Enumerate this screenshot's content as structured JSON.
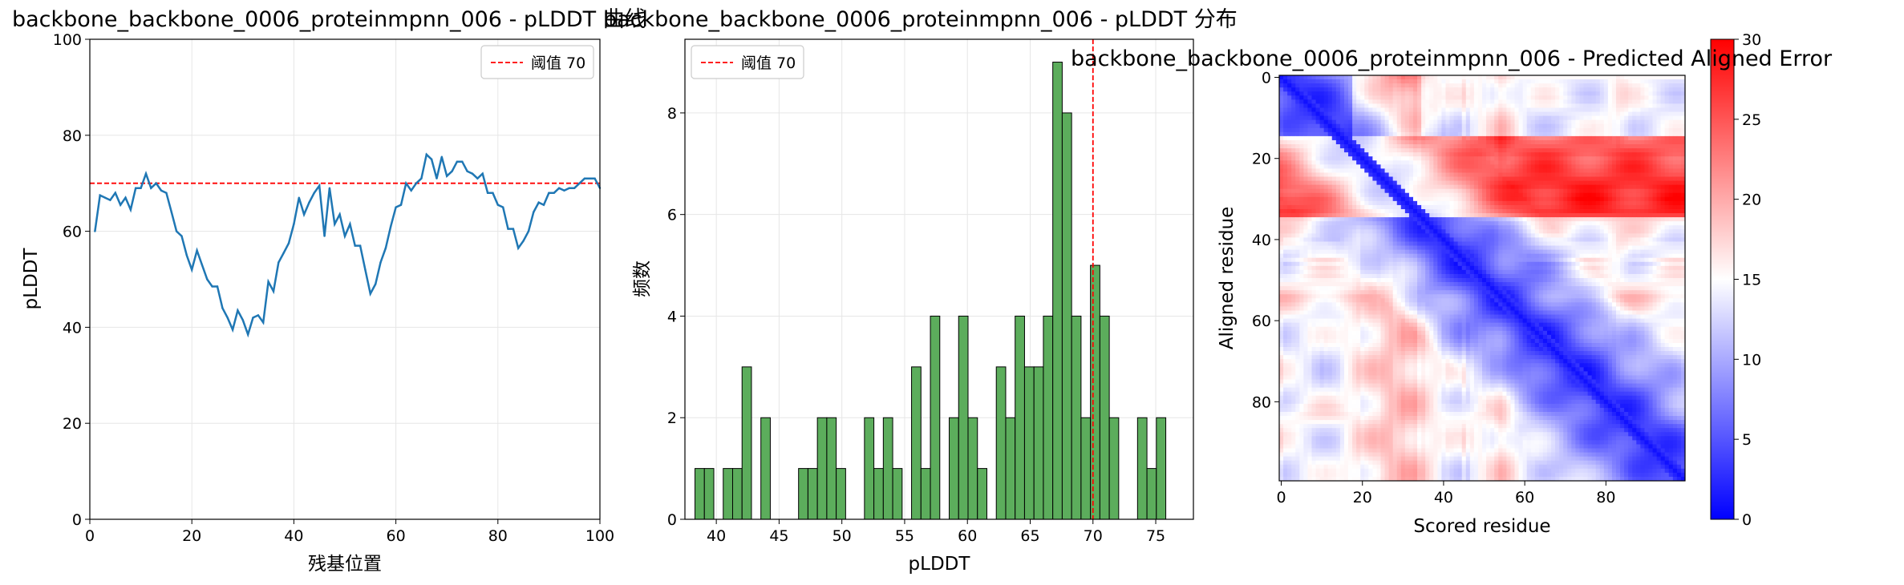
{
  "chart_data": [
    {
      "type": "line",
      "title": "backbone_backbone_0006_proteinmpnn_006 - pLDDT 曲线",
      "xlabel": "残基位置",
      "ylabel": "pLDDT",
      "xlim": [
        0,
        100
      ],
      "ylim": [
        0,
        100
      ],
      "xticks": [
        "0",
        "20",
        "40",
        "60",
        "80",
        "100"
      ],
      "yticks": [
        "0",
        "20",
        "40",
        "60",
        "80",
        "100"
      ],
      "grid": true,
      "legend_position": "top-right",
      "series_color": "#1f77b4",
      "threshold": {
        "value": 70,
        "label": "阈值 70",
        "color": "#ff0000"
      },
      "x": [
        1,
        2,
        3,
        4,
        5,
        6,
        7,
        8,
        9,
        10,
        11,
        12,
        13,
        14,
        15,
        16,
        17,
        18,
        19,
        20,
        21,
        22,
        23,
        24,
        25,
        26,
        27,
        28,
        29,
        30,
        31,
        32,
        33,
        34,
        35,
        36,
        37,
        38,
        39,
        40,
        41,
        42,
        43,
        44,
        45,
        46,
        47,
        48,
        49,
        50,
        51,
        52,
        53,
        54,
        55,
        56,
        57,
        58,
        59,
        60,
        61,
        62,
        63,
        64,
        65,
        66,
        67,
        68,
        69,
        70,
        71,
        72,
        73,
        74,
        75,
        76,
        77,
        78,
        79,
        80,
        81,
        82,
        83,
        84,
        85,
        86,
        87,
        88,
        89,
        90,
        91,
        92,
        93,
        94,
        95,
        96,
        97,
        98,
        99,
        100
      ],
      "values": [
        60,
        67.5,
        67,
        66.5,
        68,
        65.5,
        67,
        64.5,
        69,
        69,
        72,
        69,
        70,
        68.5,
        68,
        64,
        60,
        59,
        55,
        52,
        56,
        53,
        50,
        48.5,
        48.5,
        44,
        42,
        39.5,
        43.5,
        41.5,
        38.5,
        42,
        42.5,
        41,
        49.5,
        47.5,
        53.5,
        55.5,
        57.5,
        61.5,
        67,
        63.5,
        66,
        68,
        69.5,
        59,
        69,
        61.5,
        63.5,
        59,
        61.5,
        57,
        57,
        52,
        47,
        49,
        53.5,
        56.5,
        61,
        65,
        65.5,
        70,
        68.5,
        70,
        71,
        76,
        75,
        71,
        75.5,
        71.5,
        72.5,
        74.5,
        74.5,
        72.5,
        72,
        71,
        72,
        68,
        68,
        65.5,
        65,
        60.5,
        60.5,
        56.5,
        58,
        60,
        64,
        66,
        65.5,
        68,
        68,
        69,
        68.5,
        69,
        69,
        70,
        71,
        71,
        71,
        69
      ]
    },
    {
      "type": "bar",
      "title": "backbone_backbone_0006_proteinmpnn_006 - pLDDT 分布",
      "xlabel": "pLDDT",
      "ylabel": "频数",
      "xlim": [
        37.5,
        78
      ],
      "ylim": [
        0,
        9.45
      ],
      "xticks": [
        "40",
        "45",
        "50",
        "55",
        "60",
        "65",
        "70",
        "75"
      ],
      "yticks": [
        "0",
        "2",
        "4",
        "6",
        "8"
      ],
      "grid": true,
      "legend_position": "top-left",
      "bar_color": "#5cad5c",
      "threshold": {
        "value": 70,
        "label": "阈值 70",
        "color": "#ff0000"
      },
      "bin_start": 38.3,
      "bin_width": 0.75,
      "values": [
        1,
        1,
        0,
        1,
        1,
        3,
        0,
        2,
        0,
        0,
        0,
        1,
        1,
        2,
        2,
        1,
        0,
        0,
        2,
        1,
        2,
        1,
        0,
        3,
        1,
        4,
        0,
        2,
        4,
        2,
        1,
        0,
        3,
        2,
        4,
        3,
        3,
        4,
        9,
        8,
        4,
        2,
        5,
        4,
        2,
        0,
        0,
        2,
        1,
        2
      ]
    },
    {
      "type": "heatmap",
      "title": "backbone_backbone_0006_proteinmpnn_006 - Predicted Aligned Error",
      "xlabel": "Scored residue",
      "ylabel": "Aligned residue",
      "xticks": [
        "0",
        "20",
        "40",
        "60",
        "80"
      ],
      "yticks": [
        "0",
        "20",
        "40",
        "60",
        "80"
      ],
      "colorbar_ticks": [
        "0",
        "5",
        "10",
        "15",
        "20",
        "25",
        "30"
      ],
      "vmin": 0,
      "vmax": 30,
      "colormap": "bwr",
      "size": 100
    }
  ]
}
